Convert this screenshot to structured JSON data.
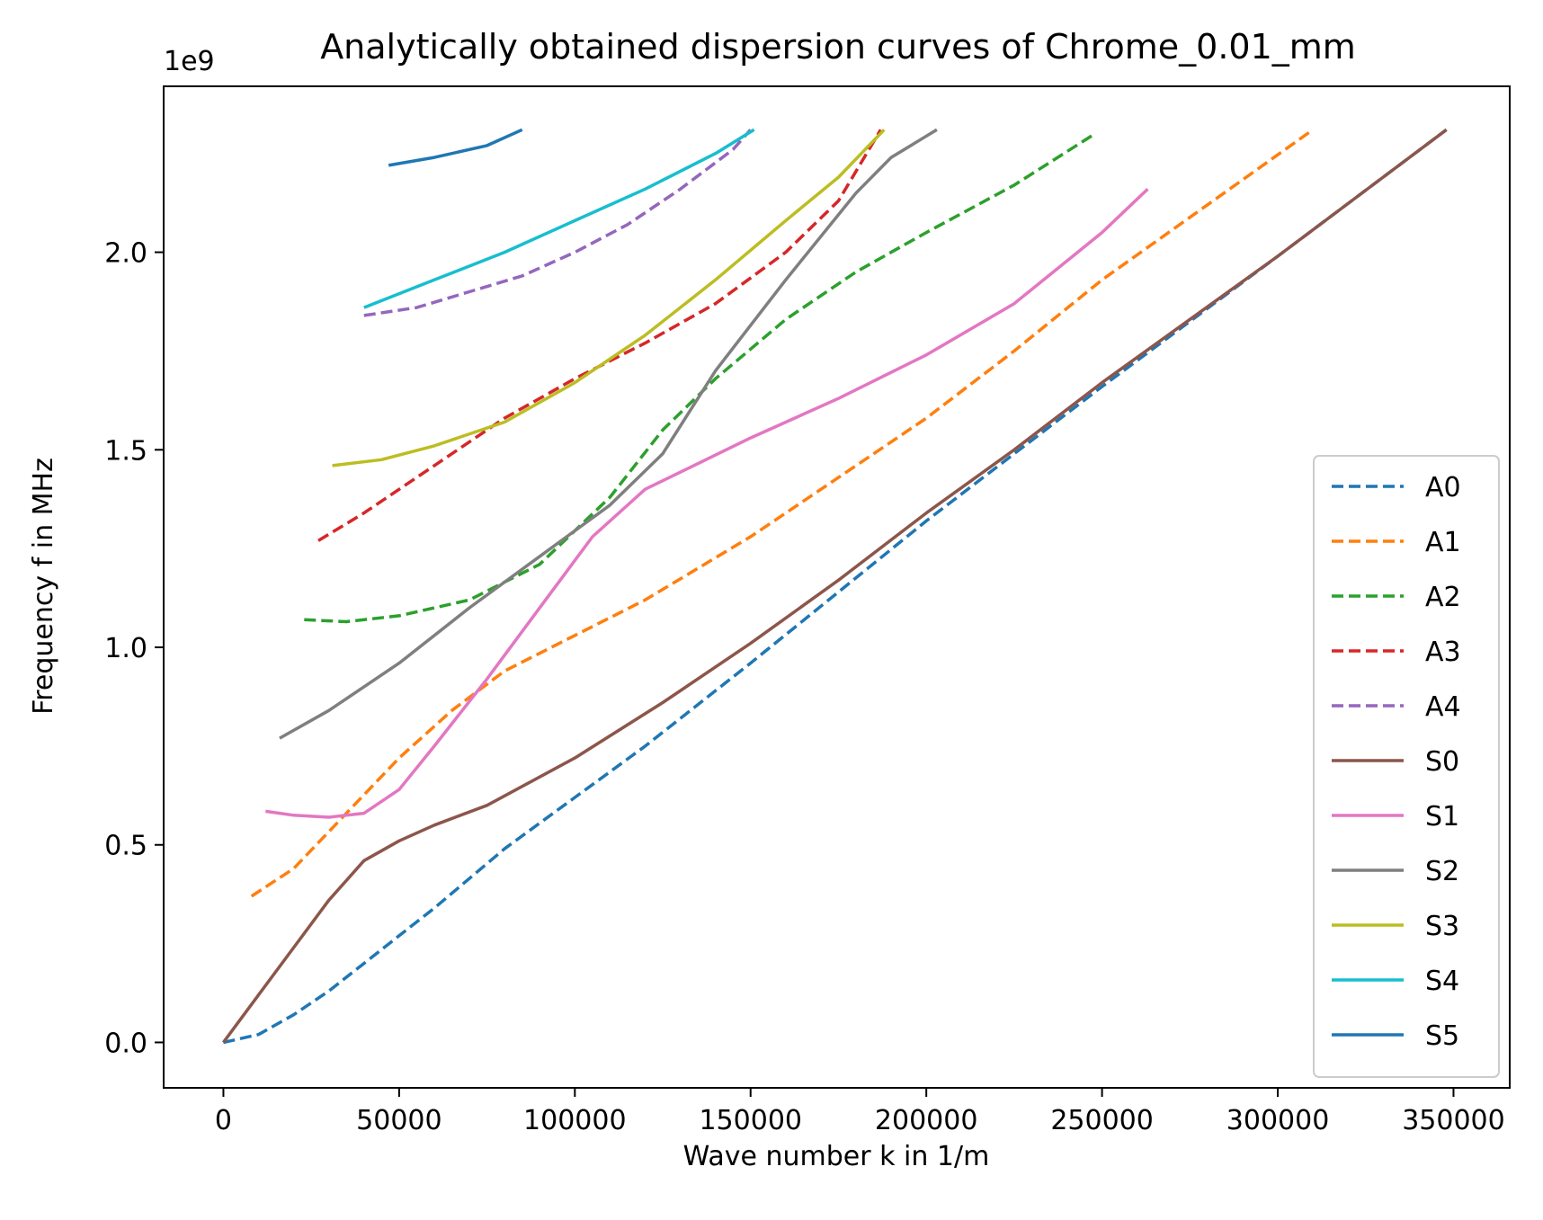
{
  "chart_data": {
    "type": "line",
    "title": "Analytically obtained dispersion curves of Chrome_0.01_mm",
    "xlabel": "Wave number k in 1/m",
    "ylabel": "Frequency f in MHz",
    "y_offset_label": "1e9",
    "xlim": [
      -17000,
      366000
    ],
    "ylim": [
      -0.115,
      2.42
    ],
    "x_ticks": [
      0,
      50000,
      100000,
      150000,
      200000,
      250000,
      300000,
      350000
    ],
    "x_tick_labels": [
      "0",
      "50000",
      "100000",
      "150000",
      "200000",
      "250000",
      "300000",
      "350000"
    ],
    "y_ticks": [
      0.0,
      0.5,
      1.0,
      1.5,
      2.0
    ],
    "y_tick_labels": [
      "0.0",
      "0.5",
      "1.0",
      "1.5",
      "2.0"
    ],
    "grid": false,
    "legend_position": "lower-right",
    "series": [
      {
        "name": "A0",
        "color": "#1f77b4",
        "dashed": true,
        "points": [
          [
            0,
            0
          ],
          [
            10000,
            0.02
          ],
          [
            20000,
            0.07
          ],
          [
            30000,
            0.13
          ],
          [
            40000,
            0.2
          ],
          [
            50000,
            0.27
          ],
          [
            60000,
            0.34
          ],
          [
            80000,
            0.49
          ],
          [
            100000,
            0.62
          ],
          [
            120000,
            0.75
          ],
          [
            150000,
            0.96
          ],
          [
            200000,
            1.32
          ],
          [
            250000,
            1.66
          ],
          [
            300000,
            1.99
          ],
          [
            348000,
            2.31
          ]
        ]
      },
      {
        "name": "A1",
        "color": "#ff7f0e",
        "dashed": true,
        "points": [
          [
            8000,
            0.37
          ],
          [
            20000,
            0.44
          ],
          [
            35000,
            0.58
          ],
          [
            50000,
            0.72
          ],
          [
            65000,
            0.84
          ],
          [
            80000,
            0.94
          ],
          [
            100000,
            1.03
          ],
          [
            120000,
            1.12
          ],
          [
            150000,
            1.28
          ],
          [
            175000,
            1.43
          ],
          [
            200000,
            1.58
          ],
          [
            225000,
            1.75
          ],
          [
            250000,
            1.93
          ],
          [
            280000,
            2.12
          ],
          [
            310000,
            2.31
          ]
        ]
      },
      {
        "name": "A2",
        "color": "#2ca02c",
        "dashed": true,
        "points": [
          [
            23000,
            1.07
          ],
          [
            35000,
            1.065
          ],
          [
            50000,
            1.08
          ],
          [
            70000,
            1.12
          ],
          [
            90000,
            1.21
          ],
          [
            110000,
            1.38
          ],
          [
            125000,
            1.55
          ],
          [
            140000,
            1.68
          ],
          [
            160000,
            1.83
          ],
          [
            180000,
            1.95
          ],
          [
            200000,
            2.05
          ],
          [
            225000,
            2.17
          ],
          [
            248000,
            2.3
          ]
        ]
      },
      {
        "name": "A3",
        "color": "#d62728",
        "dashed": true,
        "points": [
          [
            27000,
            1.27
          ],
          [
            40000,
            1.34
          ],
          [
            60000,
            1.46
          ],
          [
            80000,
            1.58
          ],
          [
            100000,
            1.68
          ],
          [
            120000,
            1.77
          ],
          [
            140000,
            1.87
          ],
          [
            160000,
            2.0
          ],
          [
            175000,
            2.13
          ],
          [
            187000,
            2.31
          ]
        ]
      },
      {
        "name": "A4",
        "color": "#9467bd",
        "dashed": true,
        "points": [
          [
            40000,
            1.84
          ],
          [
            55000,
            1.86
          ],
          [
            70000,
            1.9
          ],
          [
            85000,
            1.94
          ],
          [
            100000,
            2.0
          ],
          [
            115000,
            2.07
          ],
          [
            130000,
            2.16
          ],
          [
            145000,
            2.26
          ],
          [
            150000,
            2.31
          ]
        ]
      },
      {
        "name": "S0",
        "color": "#8c564b",
        "dashed": false,
        "points": [
          [
            0,
            0
          ],
          [
            10000,
            0.12
          ],
          [
            20000,
            0.24
          ],
          [
            30000,
            0.36
          ],
          [
            40000,
            0.46
          ],
          [
            50000,
            0.51
          ],
          [
            60000,
            0.55
          ],
          [
            75000,
            0.6
          ],
          [
            100000,
            0.72
          ],
          [
            125000,
            0.86
          ],
          [
            150000,
            1.01
          ],
          [
            175000,
            1.17
          ],
          [
            200000,
            1.34
          ],
          [
            225000,
            1.5
          ],
          [
            250000,
            1.67
          ],
          [
            300000,
            1.99
          ],
          [
            348000,
            2.31
          ]
        ]
      },
      {
        "name": "S1",
        "color": "#e377c2",
        "dashed": false,
        "points": [
          [
            12000,
            0.585
          ],
          [
            20000,
            0.575
          ],
          [
            30000,
            0.57
          ],
          [
            40000,
            0.58
          ],
          [
            50000,
            0.64
          ],
          [
            60000,
            0.75
          ],
          [
            75000,
            0.92
          ],
          [
            90000,
            1.1
          ],
          [
            105000,
            1.28
          ],
          [
            120000,
            1.4
          ],
          [
            150000,
            1.53
          ],
          [
            175000,
            1.63
          ],
          [
            200000,
            1.74
          ],
          [
            225000,
            1.87
          ],
          [
            250000,
            2.05
          ],
          [
            263000,
            2.16
          ]
        ]
      },
      {
        "name": "S2",
        "color": "#7f7f7f",
        "dashed": false,
        "points": [
          [
            16000,
            0.77
          ],
          [
            30000,
            0.84
          ],
          [
            50000,
            0.96
          ],
          [
            70000,
            1.1
          ],
          [
            90000,
            1.23
          ],
          [
            110000,
            1.36
          ],
          [
            125000,
            1.49
          ],
          [
            140000,
            1.7
          ],
          [
            160000,
            1.93
          ],
          [
            180000,
            2.15
          ],
          [
            190000,
            2.24
          ],
          [
            203000,
            2.31
          ]
        ]
      },
      {
        "name": "S3",
        "color": "#bcbd22",
        "dashed": false,
        "points": [
          [
            31000,
            1.46
          ],
          [
            45000,
            1.475
          ],
          [
            60000,
            1.51
          ],
          [
            80000,
            1.57
          ],
          [
            100000,
            1.67
          ],
          [
            120000,
            1.79
          ],
          [
            140000,
            1.93
          ],
          [
            160000,
            2.08
          ],
          [
            175000,
            2.19
          ],
          [
            188000,
            2.31
          ]
        ]
      },
      {
        "name": "S4",
        "color": "#17becf",
        "dashed": false,
        "points": [
          [
            40000,
            1.86
          ],
          [
            60000,
            1.93
          ],
          [
            80000,
            2.0
          ],
          [
            100000,
            2.08
          ],
          [
            120000,
            2.16
          ],
          [
            140000,
            2.25
          ],
          [
            151000,
            2.31
          ]
        ]
      },
      {
        "name": "S5",
        "color": "#1f77b4",
        "dashed": false,
        "points": [
          [
            47000,
            2.22
          ],
          [
            60000,
            2.24
          ],
          [
            75000,
            2.27
          ],
          [
            85000,
            2.31
          ]
        ]
      }
    ]
  }
}
